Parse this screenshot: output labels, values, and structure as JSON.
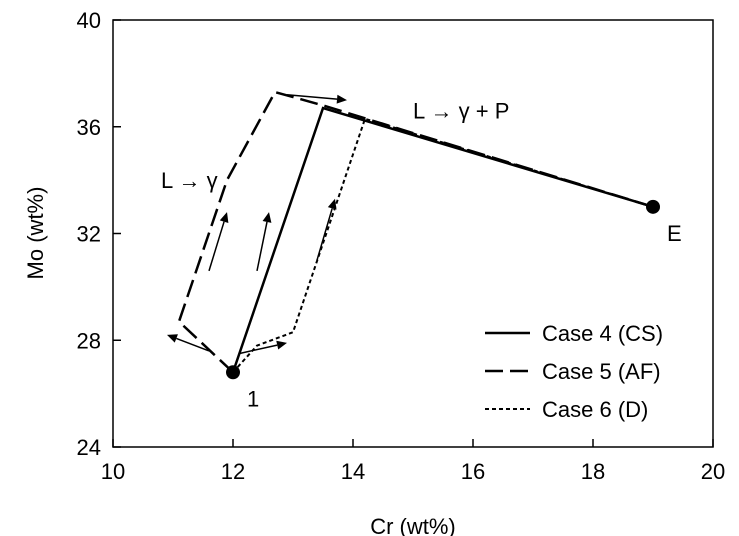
{
  "chart_data": {
    "type": "line",
    "xlabel": "Cr (wt%)",
    "ylabel": "Mo (wt%)",
    "xlim": [
      10,
      20
    ],
    "ylim": [
      24,
      40
    ],
    "xticks": [
      10,
      12,
      14,
      16,
      18,
      20
    ],
    "yticks": [
      24,
      28,
      32,
      36,
      40
    ],
    "grid": false,
    "legend": "bottom-right",
    "series": [
      {
        "name": "Case 4 (CS)",
        "style": "solid",
        "points": [
          [
            12.0,
            26.8
          ],
          [
            13.5,
            36.7
          ],
          [
            19.0,
            33.0
          ]
        ]
      },
      {
        "name": "Case 5 (AF)",
        "style": "dashed",
        "points": [
          [
            12.0,
            26.8
          ],
          [
            11.1,
            28.7
          ],
          [
            11.9,
            34.0
          ],
          [
            12.7,
            37.3
          ],
          [
            13.5,
            36.8
          ],
          [
            19.0,
            33.0
          ]
        ]
      },
      {
        "name": "Case 6 (D)",
        "style": "dotted",
        "points": [
          [
            12.0,
            26.8
          ],
          [
            12.4,
            27.8
          ],
          [
            13.0,
            28.3
          ],
          [
            14.2,
            36.3
          ],
          [
            19.0,
            33.0
          ]
        ]
      }
    ],
    "markers": [
      {
        "label": "1",
        "x": 12.0,
        "y": 26.8
      },
      {
        "label": "E",
        "x": 19.0,
        "y": 33.0
      }
    ],
    "annotations": [
      {
        "text": "L → γ",
        "x": 10.8,
        "y": 34.0
      },
      {
        "text": "L → γ + P",
        "x": 15.0,
        "y": 36.6
      }
    ],
    "arrows": [
      {
        "x1": 12.9,
        "y1": 37.2,
        "x2": 13.9,
        "y2": 37.0
      },
      {
        "x1": 12.1,
        "y1": 27.5,
        "x2": 12.9,
        "y2": 27.9
      },
      {
        "x1": 11.6,
        "y1": 27.6,
        "x2": 10.9,
        "y2": 28.2
      },
      {
        "x1": 11.6,
        "y1": 30.6,
        "x2": 11.9,
        "y2": 32.8
      },
      {
        "x1": 12.4,
        "y1": 30.6,
        "x2": 12.6,
        "y2": 32.8
      },
      {
        "x1": 13.4,
        "y1": 31.0,
        "x2": 13.7,
        "y2": 33.3
      }
    ]
  }
}
